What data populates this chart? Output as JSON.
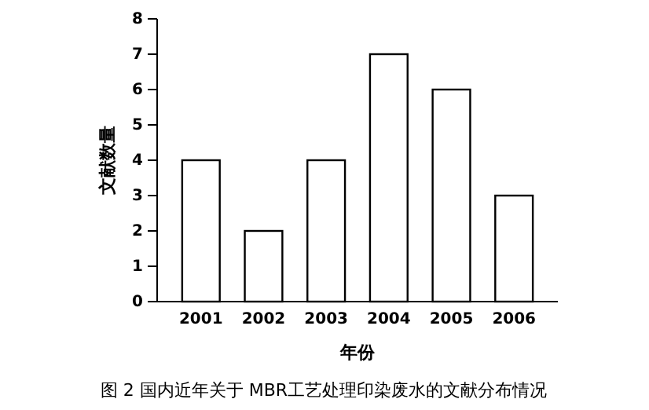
{
  "chart_data": {
    "type": "bar",
    "title": "图 2 国内近年关于 MBR工艺处理印染废水的文献分布情况",
    "xlabel": "年份",
    "ylabel": "文献数量",
    "categories": [
      "2001",
      "2002",
      "2003",
      "2004",
      "2005",
      "2006"
    ],
    "values": [
      4,
      2,
      4,
      7,
      6,
      3
    ],
    "color": "#ffffff",
    "ylim": [
      0,
      8
    ],
    "yticks": [
      0,
      1,
      2,
      3,
      4,
      5,
      6,
      7,
      8
    ],
    "grid": false
  }
}
